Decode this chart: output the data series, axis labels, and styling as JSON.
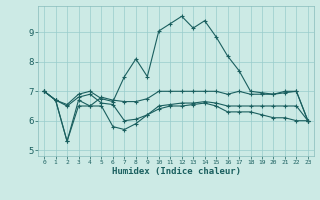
{
  "title": "",
  "xlabel": "Humidex (Indice chaleur)",
  "bg_color": "#cceae5",
  "line_color": "#1a5f5f",
  "grid_color": "#99cccc",
  "xlim": [
    -0.5,
    23.5
  ],
  "ylim": [
    4.8,
    9.9
  ],
  "xtick_labels": [
    "0",
    "1",
    "2",
    "3",
    "4",
    "5",
    "6",
    "7",
    "8",
    "9",
    "10",
    "11",
    "12",
    "13",
    "14",
    "15",
    "16",
    "17",
    "18",
    "19",
    "20",
    "21",
    "22",
    "23"
  ],
  "yticks": [
    5,
    6,
    7,
    8,
    9
  ],
  "line1_x": [
    0,
    1,
    2,
    3,
    4,
    5,
    6,
    7,
    8,
    9,
    10,
    11,
    12,
    13,
    14,
    15,
    16,
    17,
    18,
    19,
    20,
    21,
    22,
    23
  ],
  "line1_y": [
    7.0,
    6.7,
    6.55,
    6.9,
    7.0,
    6.75,
    6.65,
    7.5,
    8.1,
    7.5,
    9.05,
    9.3,
    9.55,
    9.15,
    9.4,
    8.85,
    8.2,
    7.7,
    7.0,
    6.95,
    6.9,
    6.95,
    7.0,
    6.0
  ],
  "line2_x": [
    0,
    1,
    2,
    3,
    4,
    5,
    6,
    7,
    8,
    9,
    10,
    11,
    12,
    13,
    14,
    15,
    16,
    17,
    18,
    19,
    20,
    21,
    22,
    23
  ],
  "line2_y": [
    7.0,
    6.7,
    5.3,
    6.5,
    6.5,
    6.8,
    6.7,
    6.65,
    6.65,
    6.75,
    7.0,
    7.0,
    7.0,
    7.0,
    7.0,
    7.0,
    6.9,
    7.0,
    6.9,
    6.9,
    6.9,
    7.0,
    7.0,
    6.0
  ],
  "line3_x": [
    0,
    1,
    2,
    3,
    4,
    5,
    6,
    7,
    8,
    9,
    10,
    11,
    12,
    13,
    14,
    15,
    16,
    17,
    18,
    19,
    20,
    21,
    22,
    23
  ],
  "line3_y": [
    7.0,
    6.7,
    5.3,
    6.7,
    6.5,
    6.5,
    5.8,
    5.7,
    5.9,
    6.2,
    6.5,
    6.55,
    6.6,
    6.6,
    6.65,
    6.6,
    6.5,
    6.5,
    6.5,
    6.5,
    6.5,
    6.5,
    6.5,
    6.0
  ],
  "line4_x": [
    0,
    1,
    2,
    3,
    4,
    5,
    6,
    7,
    8,
    9,
    10,
    11,
    12,
    13,
    14,
    15,
    16,
    17,
    18,
    19,
    20,
    21,
    22,
    23
  ],
  "line4_y": [
    7.0,
    6.7,
    6.5,
    6.8,
    6.9,
    6.6,
    6.55,
    6.0,
    6.05,
    6.2,
    6.4,
    6.5,
    6.5,
    6.55,
    6.6,
    6.5,
    6.3,
    6.3,
    6.3,
    6.2,
    6.1,
    6.1,
    6.0,
    6.0
  ]
}
